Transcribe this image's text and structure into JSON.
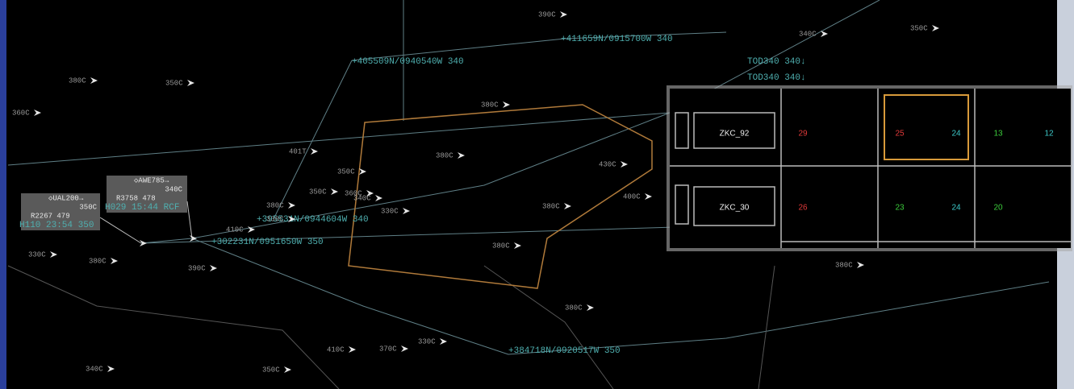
{
  "fixes": [
    "+411659N/0915700W 340",
    "+405509N/0940540W 340",
    "+395531N/0944604W 340",
    "+302231N/0951650W 350",
    "+384718N/0920517W 350"
  ],
  "tod": [
    "TOD340 340↓",
    "TOD340 340↓"
  ],
  "data_blocks": [
    {
      "callsign": "◇UAL200→",
      "alt": "350C",
      "line2": "R2267 479",
      "line3": "H110 23:54 350"
    },
    {
      "callsign": "◇AWE785→",
      "alt": "340C",
      "line2": "R3758 478",
      "line3": "H029 15:44 RCF"
    }
  ],
  "altitudes": [
    "360C",
    "380C",
    "350C",
    "380C",
    "401T",
    "350C",
    "360C",
    "340C",
    "350C",
    "380C",
    "410C",
    "330C",
    "380C",
    "330C",
    "430C",
    "400C",
    "380C",
    "380C",
    "330C",
    "390C",
    "350C",
    "380C",
    "410C",
    "370C",
    "330C",
    "380C",
    "340C",
    "390C",
    "340C",
    "350C",
    "380C"
  ],
  "table": {
    "rows": [
      {
        "sector": "ZKC_92",
        "cells": [
          "29",
          "25",
          "24",
          "13",
          "12"
        ]
      },
      {
        "sector": "ZKC_30",
        "cells": [
          "26",
          "23",
          "24",
          "20"
        ]
      }
    ]
  }
}
